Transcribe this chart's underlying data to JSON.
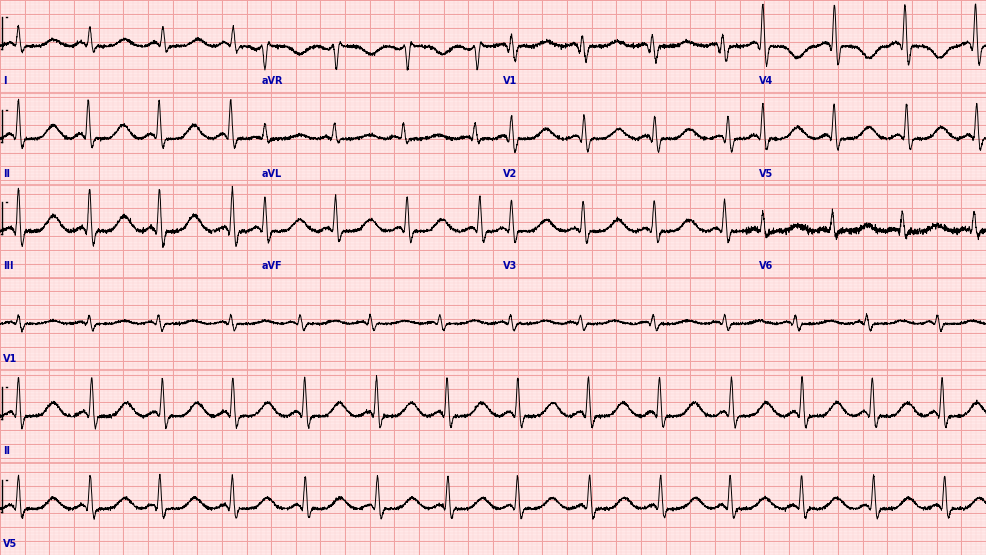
{
  "background_color": "#FFE8E8",
  "grid_major_color": "#F0A0A0",
  "grid_minor_color": "#FAD0D0",
  "line_color": "#000000",
  "label_color": "#0000AA",
  "fig_width": 9.86,
  "fig_height": 5.55,
  "dpi": 100,
  "num_rows": 6,
  "line_width": 0.7,
  "label_fontsize": 7,
  "row_labels_left": [
    "I",
    "II",
    "III",
    "V1",
    "II",
    "V5"
  ],
  "col_labels_row1": [
    [
      "aVR",
      0.265
    ],
    [
      "V1",
      0.51
    ],
    [
      "V4",
      0.77
    ]
  ],
  "col_labels_row2": [
    [
      "aVL",
      0.265
    ],
    [
      "V2",
      0.51
    ],
    [
      "V5",
      0.77
    ]
  ],
  "col_labels_row3": [
    [
      "aVF",
      0.265
    ],
    [
      "V3",
      0.51
    ],
    [
      "V6",
      0.77
    ]
  ]
}
